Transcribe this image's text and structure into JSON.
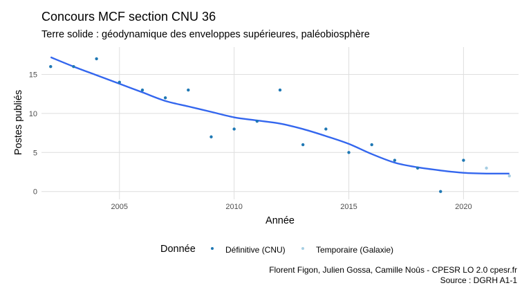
{
  "title": "Concours MCF section CNU 36",
  "subtitle": "Terre solide : géodynamique des enveloppes supérieures, paléobiosphère",
  "caption_line1": "Florent Figon, Julien Gossa, Camille Noûs - CPESR LO 2.0 cpesr.fr",
  "caption_line2": "Source : DGRH A1-1",
  "legend": {
    "title": "Donnée",
    "items": [
      {
        "label": "Définitive (CNU)",
        "color": "#1f78b4"
      },
      {
        "label": "Temporaire (Galaxie)",
        "color": "#a6cee3"
      }
    ]
  },
  "colors": {
    "smooth": "#3366ee",
    "grid": "#dedede"
  },
  "chart_data": {
    "type": "scatter",
    "xlabel": "Année",
    "ylabel": "Postes publiés",
    "xlim": [
      2001.6,
      2022.4
    ],
    "ylim": [
      -1,
      18.5
    ],
    "xticks": [
      2005,
      2010,
      2015,
      2020
    ],
    "yticks": [
      0,
      5,
      10,
      15
    ],
    "grid": true,
    "legend_position": "bottom",
    "series": [
      {
        "name": "Définitive (CNU)",
        "color": "#1f78b4",
        "x": [
          2002,
          2003,
          2004,
          2005,
          2006,
          2007,
          2008,
          2009,
          2010,
          2011,
          2012,
          2013,
          2014,
          2015,
          2016,
          2017,
          2018,
          2019,
          2020
        ],
        "y": [
          16,
          16,
          17,
          14,
          13,
          12,
          13,
          7,
          8,
          9,
          13,
          6,
          8,
          5,
          6,
          4,
          3,
          0,
          4
        ]
      },
      {
        "name": "Temporaire (Galaxie)",
        "color": "#a6cee3",
        "x": [
          2021,
          2022
        ],
        "y": [
          3,
          2
        ]
      }
    ],
    "smooth": {
      "color": "#3366ee",
      "x": [
        2002,
        2003,
        2004,
        2005,
        2006,
        2007,
        2008,
        2009,
        2010,
        2011,
        2012,
        2013,
        2014,
        2015,
        2016,
        2017,
        2018,
        2019,
        2020,
        2021,
        2022
      ],
      "y": [
        17.2,
        16.0,
        14.9,
        13.8,
        12.7,
        11.6,
        10.9,
        10.2,
        9.5,
        9.1,
        8.7,
        8.0,
        7.1,
        6.1,
        4.8,
        3.7,
        3.1,
        2.7,
        2.4,
        2.3,
        2.3
      ]
    }
  }
}
